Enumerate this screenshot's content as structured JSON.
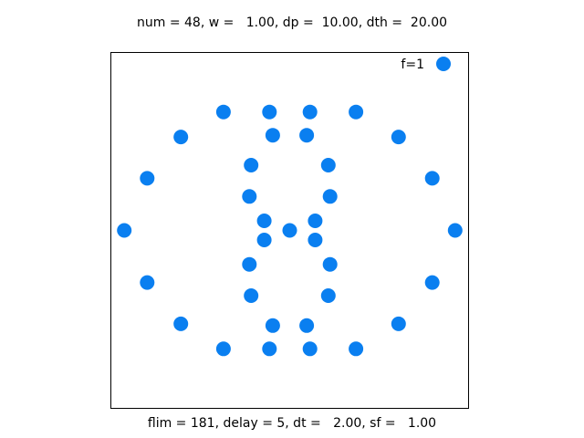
{
  "header": {
    "title": "num = 48, w =   1.00, dp =  10.00, dth =  20.00"
  },
  "footer": {
    "caption": "flim = 181, delay = 5, dt =   2.00, sf =   1.00"
  },
  "chart_data": {
    "type": "scatter",
    "title": "num = 48, w =   1.00, dp =  10.00, dth =  20.00",
    "subtitle": "flim = 181, delay = 5, dt =   2.00, sf =   1.00",
    "xlabel": "",
    "ylabel": "",
    "grid": false,
    "legend": {
      "position": "top-right",
      "entries": [
        "f=1"
      ]
    },
    "series": [
      {
        "name": "f=1",
        "color": "#0a7ff0",
        "points": [
          [
            -7.42,
            0.0
          ],
          [
            -6.39,
            2.35
          ],
          [
            -6.39,
            -2.35
          ],
          [
            -4.88,
            4.21
          ],
          [
            -4.88,
            -4.21
          ],
          [
            -2.97,
            5.34
          ],
          [
            -2.97,
            -5.34
          ],
          [
            -0.91,
            5.34
          ],
          [
            -0.91,
            -5.34
          ],
          [
            0.91,
            5.34
          ],
          [
            0.91,
            -5.34
          ],
          [
            2.97,
            5.34
          ],
          [
            2.97,
            -5.34
          ],
          [
            4.88,
            4.21
          ],
          [
            4.88,
            -4.21
          ],
          [
            6.39,
            2.35
          ],
          [
            6.39,
            -2.35
          ],
          [
            7.42,
            0.0
          ],
          [
            -0.76,
            4.29
          ],
          [
            0.76,
            4.29
          ],
          [
            -0.76,
            -4.29
          ],
          [
            0.76,
            -4.29
          ],
          [
            -1.73,
            2.94
          ],
          [
            1.73,
            2.94
          ],
          [
            -1.73,
            -2.94
          ],
          [
            1.73,
            -2.94
          ],
          [
            -1.81,
            1.53
          ],
          [
            1.81,
            1.53
          ],
          [
            -1.81,
            -1.53
          ],
          [
            1.81,
            -1.53
          ],
          [
            -1.14,
            0.43
          ],
          [
            1.14,
            0.43
          ],
          [
            -1.14,
            -0.43
          ],
          [
            1.14,
            -0.43
          ],
          [
            0.0,
            0.0
          ]
        ]
      }
    ],
    "xlim": [
      -8.0,
      8.0
    ],
    "ylim": [
      -8.0,
      8.0
    ]
  }
}
